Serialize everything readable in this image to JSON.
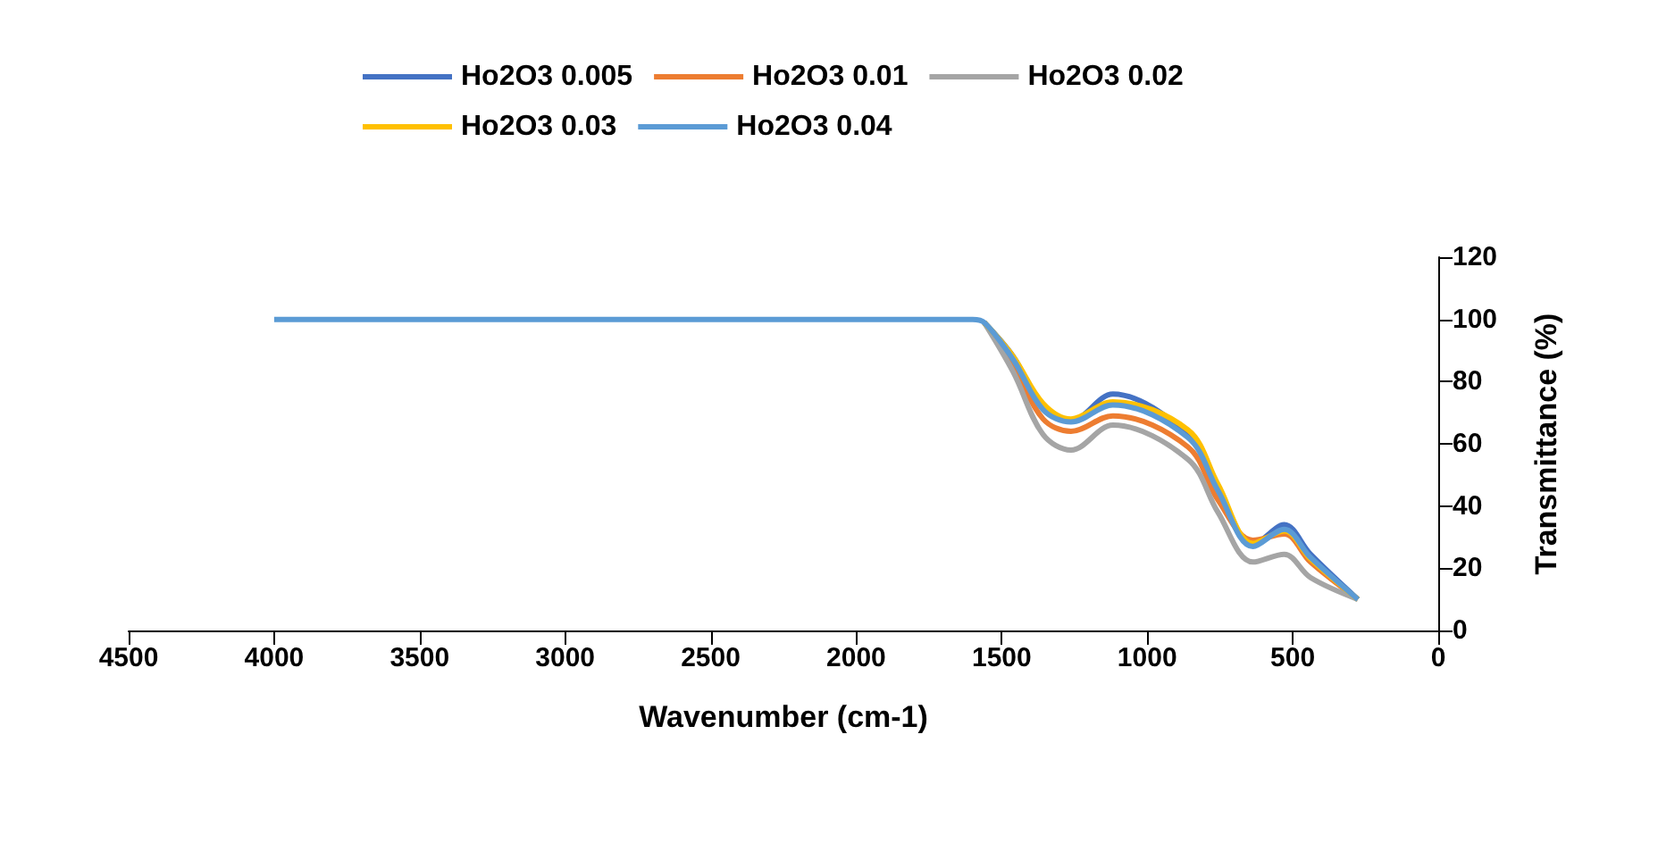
{
  "chart_data": {
    "type": "line",
    "xlabel": "Wavenumber (cm-1)",
    "ylabel": "Transmittance (%)",
    "x": [
      4000,
      1600,
      1560,
      1460,
      1358,
      1262,
      1118,
      860,
      757,
      637,
      529,
      439,
      276
    ],
    "xlim": [
      4500,
      0
    ],
    "xticks": [
      4500,
      4000,
      3500,
      3000,
      2500,
      2000,
      1500,
      1000,
      500,
      0
    ],
    "ylim": [
      0,
      120
    ],
    "yticks": [
      0,
      20,
      40,
      60,
      80,
      100,
      120
    ],
    "grid": false,
    "legend": "top",
    "marker": "none",
    "line_style": "solid",
    "series": [
      {
        "name": "Ho2O3 0.005",
        "color": "#4472c4",
        "values": [
          null,
          null,
          99,
          88,
          71.5,
          67.5,
          76,
          63,
          45.5,
          27.5,
          34,
          24.5,
          10
        ]
      },
      {
        "name": "Ho2O3 0.01",
        "color": "#ed7d31",
        "values": [
          null,
          null,
          99,
          85,
          68,
          64,
          69,
          59,
          42,
          29,
          31,
          22,
          10
        ]
      },
      {
        "name": "Ho2O3 0.02",
        "color": "#a5a5a5",
        "values": [
          null,
          null,
          99,
          83,
          63,
          58,
          66,
          55,
          38,
          22,
          24.5,
          17,
          10
        ]
      },
      {
        "name": "Ho2O3 0.03",
        "color": "#ffc000",
        "values": [
          null,
          null,
          99,
          88,
          73,
          68,
          73.5,
          64.5,
          47,
          28,
          32,
          23,
          10
        ]
      },
      {
        "name": "Ho2O3 0.04",
        "color": "#5b9bd5",
        "values": [
          100,
          100,
          99,
          87,
          71,
          67,
          72.5,
          62,
          45,
          27,
          32.5,
          23.5,
          10
        ]
      }
    ]
  }
}
